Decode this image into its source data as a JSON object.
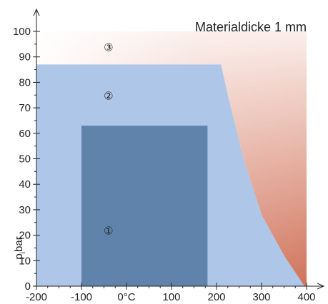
{
  "chart_data": {
    "type": "area",
    "title": "Materialdicke 1 mm",
    "xlabel": "",
    "ylabel": "p bar",
    "ylabel_subscript": "i",
    "xlim": [
      -200,
      400
    ],
    "ylim": [
      0,
      100
    ],
    "x_ticks": [
      -200,
      -100,
      0,
      100,
      200,
      300,
      400
    ],
    "x_tick_labels": [
      "-200",
      "-100",
      "0°C",
      "100",
      "200",
      "300",
      "400"
    ],
    "y_ticks": [
      0,
      10,
      20,
      30,
      40,
      50,
      60,
      70,
      80,
      90,
      100
    ],
    "y_tick_labels": [
      "0",
      "10",
      "20",
      "30",
      "40",
      "50",
      "60",
      "70",
      "80",
      "90",
      "100"
    ],
    "zones": [
      {
        "label": "①",
        "color": "#5f83ab",
        "polygon": [
          [
            -100,
            0
          ],
          [
            -100,
            63
          ],
          [
            180,
            63
          ],
          [
            180,
            0
          ]
        ],
        "label_at": [
          -40,
          22
        ]
      },
      {
        "label": "②",
        "color": "#aec6e8",
        "polygon": [
          [
            -200,
            0
          ],
          [
            -200,
            87
          ],
          [
            210,
            87
          ],
          [
            225,
            75
          ],
          [
            260,
            50
          ],
          [
            300,
            28
          ],
          [
            350,
            12
          ],
          [
            395,
            0
          ]
        ],
        "label_at": [
          -40,
          75
        ]
      },
      {
        "label": "③",
        "color_top": "#fbeeea",
        "color_bottom": "#d0735a",
        "polygon": [
          [
            -200,
            100
          ],
          [
            400,
            100
          ],
          [
            400,
            0
          ],
          [
            395,
            0
          ],
          [
            350,
            12
          ],
          [
            300,
            28
          ],
          [
            260,
            50
          ],
          [
            225,
            75
          ],
          [
            210,
            87
          ],
          [
            -200,
            87
          ]
        ],
        "label_at": [
          -40,
          94
        ]
      }
    ],
    "grid": false,
    "legend": "none"
  }
}
